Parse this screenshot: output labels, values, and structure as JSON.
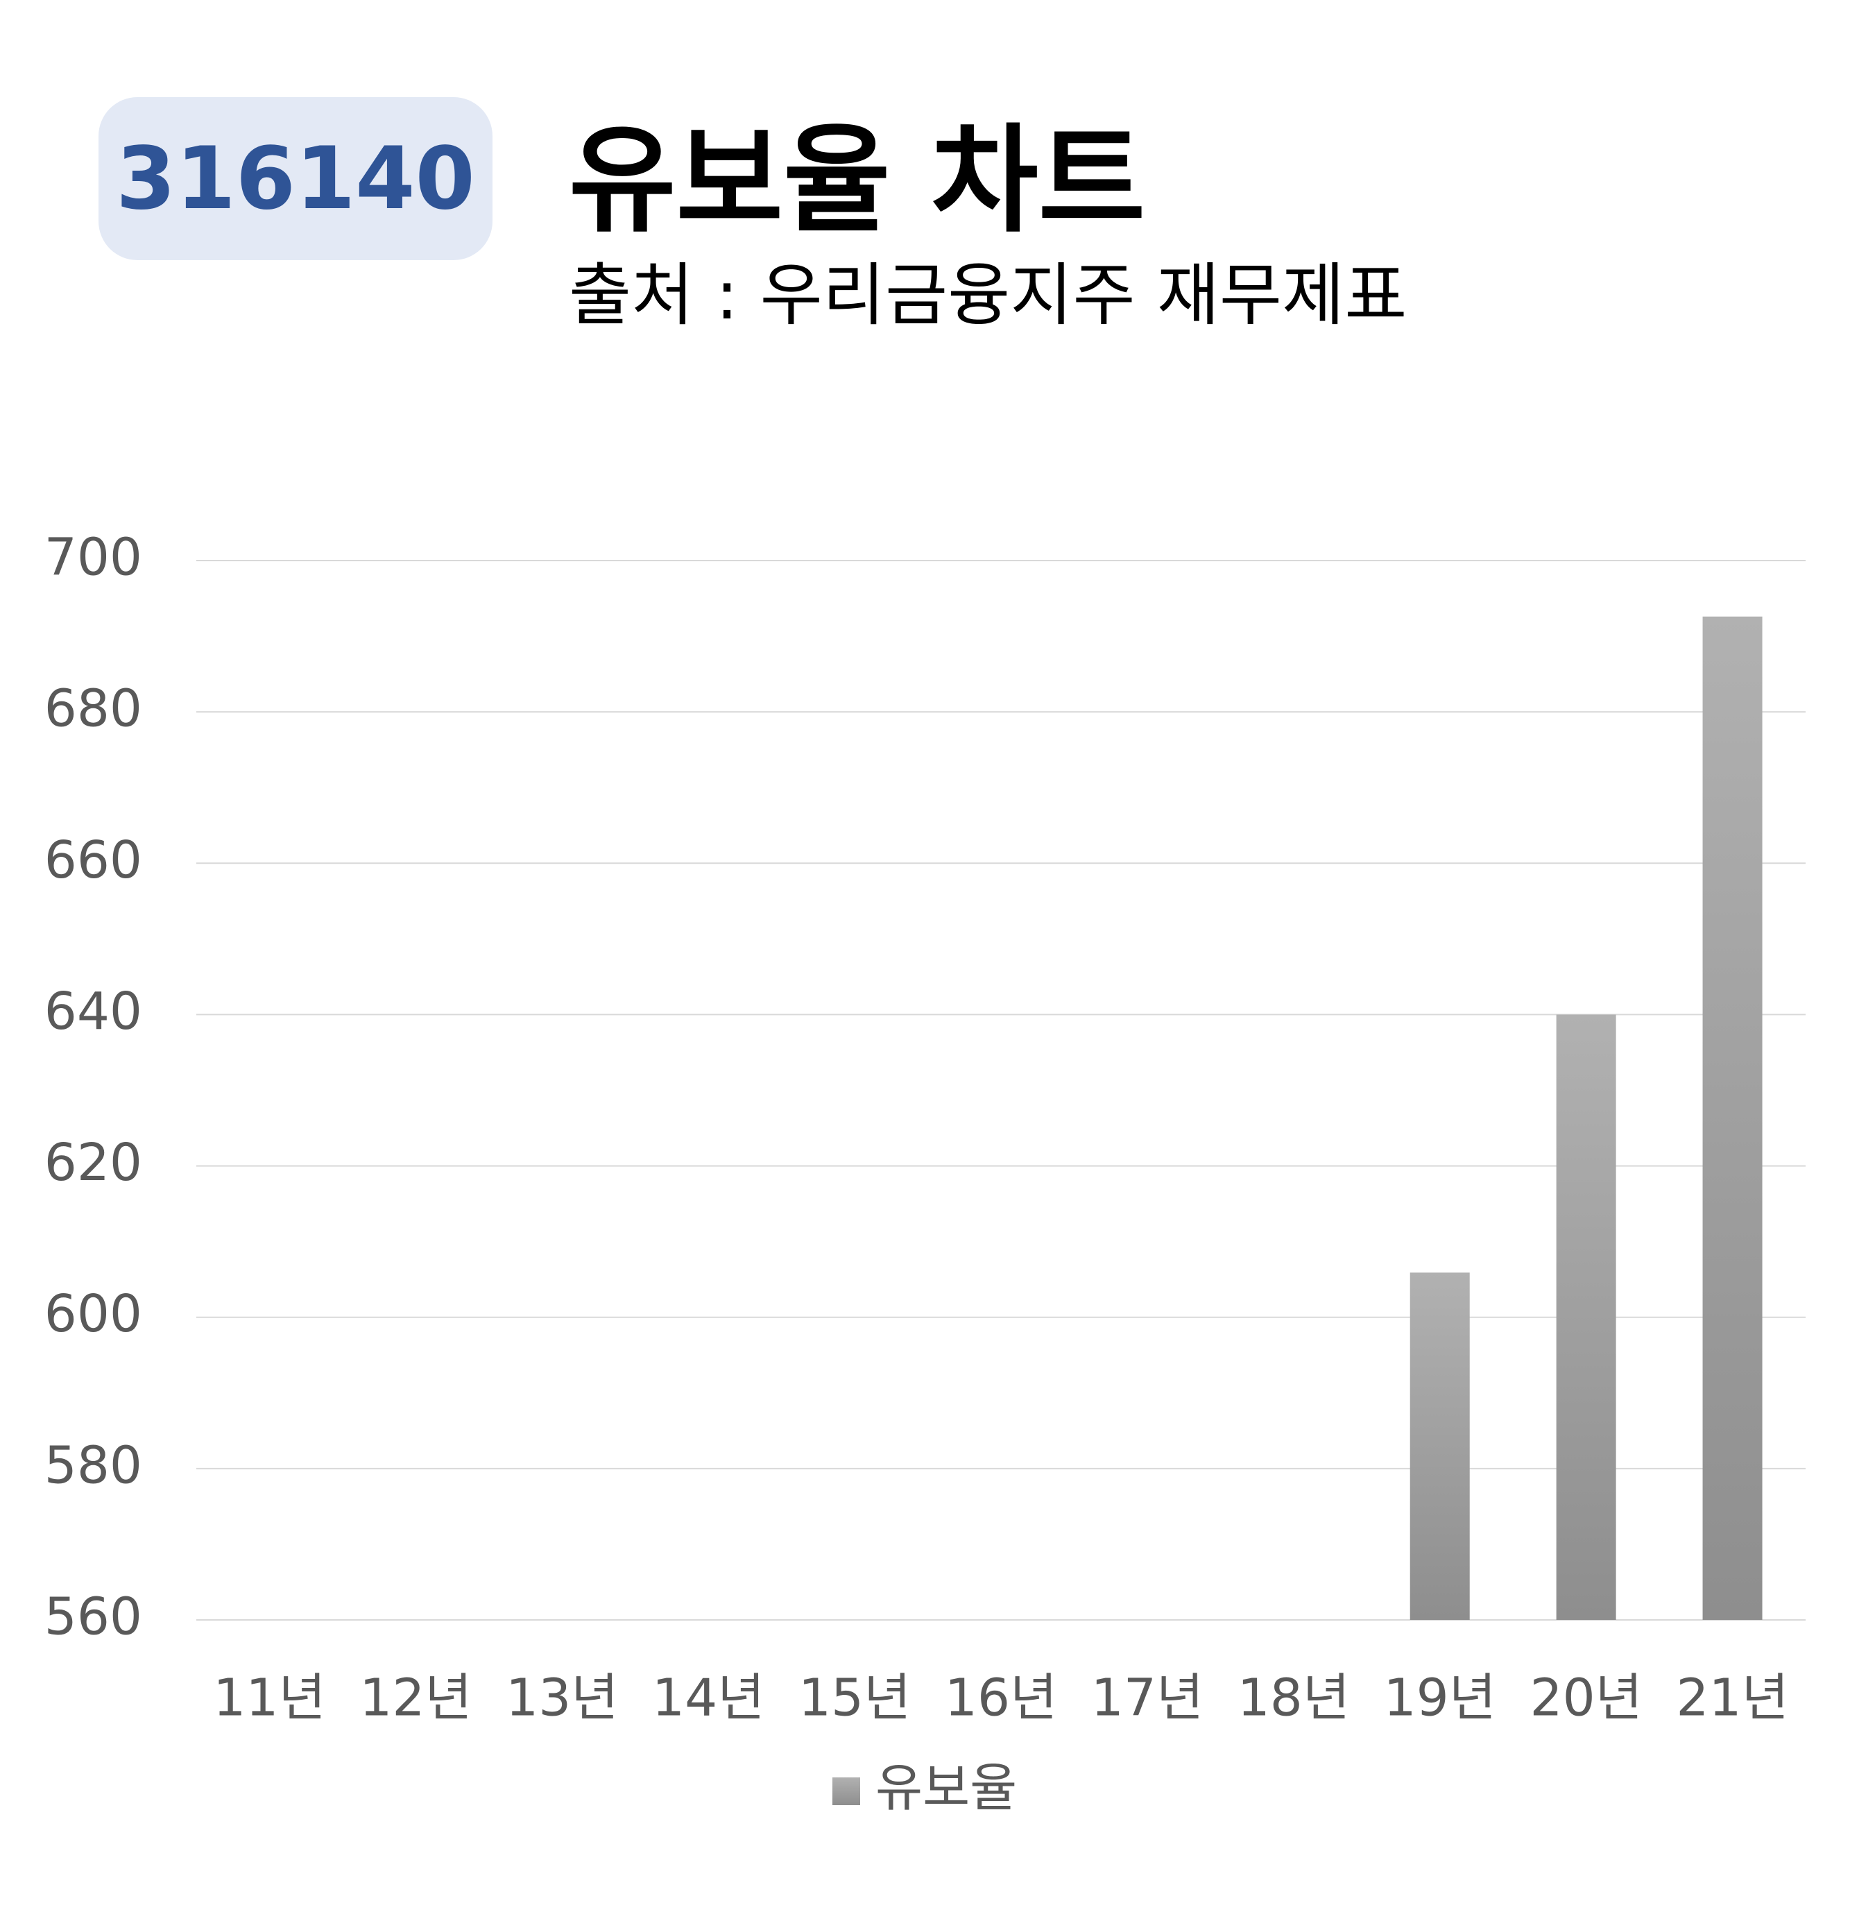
{
  "badge": {
    "code": "316140"
  },
  "header": {
    "title": "유보율 차트",
    "subtitle": "출처 : 우리금융지주 재무제표"
  },
  "colors": {
    "badge_bg": "#e3e9f5",
    "badge_text": "#2f5496",
    "bar_top": "#b1b1b1",
    "bar_bottom": "#8e8e8e",
    "grid": "#d9d9d9",
    "tick_text": "#595959"
  },
  "chart_data": {
    "type": "bar",
    "categories": [
      "11년",
      "12년",
      "13년",
      "14년",
      "15년",
      "16년",
      "17년",
      "18년",
      "19년",
      "20년",
      "21년"
    ],
    "series": [
      {
        "name": "유보율",
        "values": [
          null,
          null,
          null,
          null,
          null,
          null,
          null,
          null,
          605.9,
          640.0,
          692.6
        ]
      }
    ],
    "ylim": [
      560,
      700
    ],
    "yticks": [
      560,
      580,
      600,
      620,
      640,
      660,
      680,
      700
    ],
    "grid": true,
    "legend": "bottom-center"
  }
}
